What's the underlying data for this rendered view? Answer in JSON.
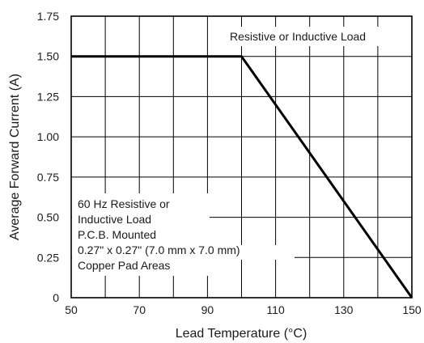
{
  "chart_data": {
    "type": "line",
    "title": "",
    "xlabel": "Lead Temperature (°C)",
    "ylabel": "Average Forward Current (A)",
    "xlim": [
      50,
      150
    ],
    "ylim": [
      0,
      1.75
    ],
    "x_ticks": [
      50,
      60,
      70,
      80,
      90,
      100,
      110,
      120,
      130,
      140,
      150
    ],
    "y_ticks": [
      0,
      0.25,
      0.5,
      0.75,
      1.0,
      1.25,
      1.5,
      1.75
    ],
    "x_tick_labels": [
      "50",
      "",
      "70",
      "",
      "90",
      "",
      "110",
      "",
      "130",
      "",
      "150"
    ],
    "y_tick_labels": [
      "0",
      "0.25",
      "0.50",
      "0.75",
      "1.00",
      "1.25",
      "1.50",
      "1.75"
    ],
    "grid": true,
    "series": [
      {
        "x": [
          50,
          100,
          150
        ],
        "y": [
          1.5,
          1.5,
          0
        ]
      }
    ],
    "annotations": {
      "top_right": "Resistive or Inductive Load",
      "bottom_left": [
        "60 Hz Resistive or",
        "Inductive Load",
        "P.C.B. Mounted",
        "0.27\" x 0.27\" (7.0 mm x 7.0 mm)",
        "Copper Pad Areas"
      ]
    },
    "colors": {
      "line": "#000000",
      "grid": "#000000",
      "background": "#ffffff"
    }
  }
}
